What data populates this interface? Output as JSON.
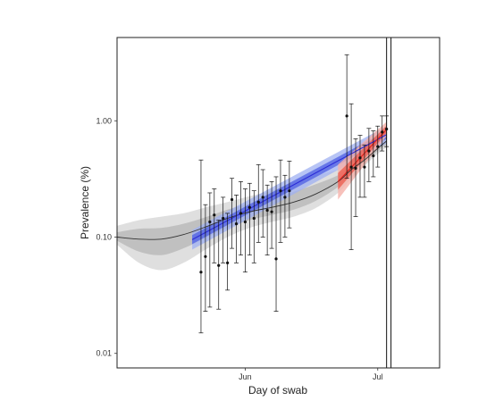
{
  "chart_data": {
    "type": "line",
    "title": "",
    "xlabel": "Day of swab",
    "ylabel": "Prevalence (%)",
    "y_scale": "log10",
    "ylim": [
      0.0075,
      5.2
    ],
    "xlim": [
      "2021-05-03",
      "2021-07-15"
    ],
    "y_ticks": [
      {
        "value": 0.01,
        "label": "0.01"
      },
      {
        "value": 0.1,
        "label": "0.10"
      },
      {
        "value": 1.0,
        "label": "1.00"
      }
    ],
    "x_ticks": [
      {
        "value": "2021-06-01",
        "label": "Jun"
      },
      {
        "value": "2021-07-01",
        "label": "Jul"
      }
    ],
    "grid": false,
    "legend": "none",
    "vertical_lines": [
      "2021-07-03",
      "2021-07-04"
    ],
    "colors": {
      "smooth_line": "#333333",
      "smooth_band_inner": "#b8b8b8",
      "smooth_band_outer": "#d9d9d9",
      "round1_line": "#2b2bd6",
      "round1_band_inner": "#4d5fe3",
      "round1_band_outer": "#9fb0f2",
      "round2_line": "#e0201b",
      "round2_band_inner": "#ec5a4c",
      "round2_band_outer": "#f5b2aa",
      "points": "#111111"
    },
    "series": [
      {
        "type": "smooth",
        "x": [
          "2021-05-03",
          "2021-05-08",
          "2021-05-13",
          "2021-05-18",
          "2021-05-23",
          "2021-05-28",
          "2021-06-02",
          "2021-06-07",
          "2021-06-12",
          "2021-06-17",
          "2021-06-22",
          "2021-06-25",
          "2021-06-28",
          "2021-07-01",
          "2021-07-03"
        ],
        "y": [
          0.1,
          0.096,
          0.096,
          0.105,
          0.122,
          0.145,
          0.165,
          0.18,
          0.2,
          0.235,
          0.3,
          0.38,
          0.46,
          0.58,
          0.67
        ],
        "lower95": [
          0.086,
          0.06,
          0.052,
          0.06,
          0.078,
          0.1,
          0.12,
          0.135,
          0.15,
          0.178,
          0.24,
          0.32,
          0.41,
          0.52,
          0.59
        ],
        "upper95": [
          0.125,
          0.14,
          0.15,
          0.16,
          0.18,
          0.2,
          0.225,
          0.25,
          0.3,
          0.34,
          0.38,
          0.45,
          0.53,
          0.65,
          0.78
        ],
        "lower50": [
          0.093,
          0.075,
          0.07,
          0.08,
          0.098,
          0.12,
          0.14,
          0.155,
          0.172,
          0.205,
          0.27,
          0.35,
          0.435,
          0.55,
          0.63
        ],
        "upper50": [
          0.11,
          0.118,
          0.12,
          0.13,
          0.148,
          0.172,
          0.195,
          0.212,
          0.245,
          0.285,
          0.34,
          0.41,
          0.49,
          0.61,
          0.72
        ]
      },
      {
        "type": "exponential-fit",
        "x": [
          "2021-05-20",
          "2021-07-03"
        ],
        "y": [
          0.095,
          0.76
        ],
        "lower95": [
          0.078,
          0.64
        ],
        "upper95": [
          0.115,
          0.9
        ],
        "lower50": [
          0.087,
          0.7
        ],
        "upper50": [
          0.104,
          0.82
        ]
      },
      {
        "type": "exponential-fit",
        "x": [
          "2021-06-22",
          "2021-07-03"
        ],
        "y": [
          0.3,
          0.84
        ],
        "lower95": [
          0.21,
          0.74
        ],
        "upper95": [
          0.42,
          0.98
        ],
        "lower50": [
          0.255,
          0.79
        ],
        "upper50": [
          0.355,
          0.91
        ]
      },
      {
        "type": "points",
        "points": [
          {
            "x": "2021-05-22",
            "y": 0.05,
            "low": 0.015,
            "high": 0.46
          },
          {
            "x": "2021-05-23",
            "y": 0.068,
            "low": 0.023,
            "high": 0.19
          },
          {
            "x": "2021-05-24",
            "y": 0.135,
            "low": 0.025,
            "high": 0.24
          },
          {
            "x": "2021-05-25",
            "y": 0.155,
            "low": 0.06,
            "high": 0.26
          },
          {
            "x": "2021-05-26",
            "y": 0.057,
            "low": 0.024,
            "high": 0.14
          },
          {
            "x": "2021-05-27",
            "y": 0.145,
            "low": 0.06,
            "high": 0.22
          },
          {
            "x": "2021-05-28",
            "y": 0.06,
            "low": 0.035,
            "high": 0.16
          },
          {
            "x": "2021-05-29",
            "y": 0.21,
            "low": 0.08,
            "high": 0.32
          },
          {
            "x": "2021-05-30",
            "y": 0.13,
            "low": 0.06,
            "high": 0.23
          },
          {
            "x": "2021-05-31",
            "y": 0.16,
            "low": 0.07,
            "high": 0.3
          },
          {
            "x": "2021-06-01",
            "y": 0.135,
            "low": 0.05,
            "high": 0.26
          },
          {
            "x": "2021-06-02",
            "y": 0.18,
            "low": 0.07,
            "high": 0.29
          },
          {
            "x": "2021-06-03",
            "y": 0.145,
            "low": 0.06,
            "high": 0.25
          },
          {
            "x": "2021-06-04",
            "y": 0.2,
            "low": 0.09,
            "high": 0.42
          },
          {
            "x": "2021-06-05",
            "y": 0.22,
            "low": 0.1,
            "high": 0.38
          },
          {
            "x": "2021-06-06",
            "y": 0.17,
            "low": 0.07,
            "high": 0.28
          },
          {
            "x": "2021-06-07",
            "y": 0.165,
            "low": 0.08,
            "high": 0.3
          },
          {
            "x": "2021-06-08",
            "y": 0.065,
            "low": 0.023,
            "high": 0.33
          },
          {
            "x": "2021-06-09",
            "y": 0.25,
            "low": 0.09,
            "high": 0.46
          },
          {
            "x": "2021-06-10",
            "y": 0.22,
            "low": 0.1,
            "high": 0.34
          },
          {
            "x": "2021-06-11",
            "y": 0.25,
            "low": 0.12,
            "high": 0.45
          },
          {
            "x": "2021-06-24",
            "y": 1.1,
            "low": 0.32,
            "high": 3.7
          },
          {
            "x": "2021-06-25",
            "y": 0.4,
            "low": 0.078,
            "high": 1.4
          },
          {
            "x": "2021-06-26",
            "y": 0.39,
            "low": 0.15,
            "high": 0.7
          },
          {
            "x": "2021-06-27",
            "y": 0.48,
            "low": 0.22,
            "high": 0.75
          },
          {
            "x": "2021-06-28",
            "y": 0.4,
            "low": 0.22,
            "high": 0.62
          },
          {
            "x": "2021-06-29",
            "y": 0.55,
            "low": 0.3,
            "high": 0.86
          },
          {
            "x": "2021-06-30",
            "y": 0.5,
            "low": 0.33,
            "high": 0.82
          },
          {
            "x": "2021-07-01",
            "y": 0.6,
            "low": 0.4,
            "high": 0.9
          },
          {
            "x": "2021-07-02",
            "y": 0.8,
            "low": 0.55,
            "high": 1.1
          },
          {
            "x": "2021-07-03",
            "y": 0.85,
            "low": 0.6,
            "high": 1.1
          }
        ]
      }
    ]
  }
}
